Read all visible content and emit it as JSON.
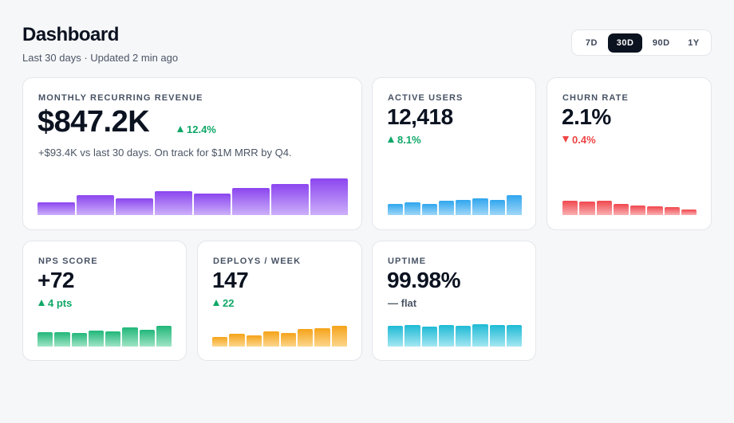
{
  "header": {
    "title": "Dashboard",
    "subtitle": "Last 30 days · Updated 2 min ago"
  },
  "range": {
    "options": [
      "7D",
      "30D",
      "90D",
      "1Y"
    ],
    "selected": "30D"
  },
  "cards": {
    "mrr": {
      "label": "MONTHLY RECURRING REVENUE",
      "value": "$847.2K",
      "delta": "12.4%",
      "trend": "up",
      "note": "+$93.4K vs last 30 days. On track for $1M MRR by Q4.",
      "series": [
        0.35,
        0.54,
        0.46,
        0.65,
        0.58,
        0.74,
        0.85,
        1.0
      ]
    },
    "active_users": {
      "label": "ACTIVE USERS",
      "value": "12,418",
      "delta": "8.1%",
      "trend": "up",
      "series": [
        0.54,
        0.6,
        0.52,
        0.68,
        0.72,
        0.8,
        0.74,
        0.96
      ]
    },
    "churn": {
      "label": "CHURN RATE",
      "value": "2.1%",
      "delta": "0.4%",
      "trend": "down",
      "series": [
        0.84,
        0.76,
        0.8,
        0.62,
        0.54,
        0.48,
        0.44,
        0.34
      ]
    },
    "nps": {
      "label": "NPS SCORE",
      "value": "+72",
      "delta": "4 pts",
      "trend": "up",
      "series": [
        0.7,
        0.7,
        0.66,
        0.78,
        0.74,
        0.92,
        0.82,
        1.0
      ]
    },
    "deploys": {
      "label": "DEPLOYS / WEEK",
      "value": "147",
      "delta": "22",
      "trend": "up",
      "series": [
        0.46,
        0.6,
        0.52,
        0.74,
        0.66,
        0.84,
        0.9,
        1.0
      ]
    },
    "uptime": {
      "label": "UPTIME",
      "value": "99.98%",
      "delta": "— flat",
      "trend": "flat",
      "series": [
        0.94,
        0.96,
        0.9,
        0.96,
        0.92,
        1.0,
        0.96,
        0.96
      ]
    }
  },
  "colors": {
    "mrr": "#8b45ef",
    "active_users": "#30a6ee",
    "churn": "#f0474d",
    "nps": "#21b77a",
    "deploys": "#f5a31a",
    "uptime": "#1fbad5",
    "up": "#10a768",
    "down": "#ef4444"
  }
}
